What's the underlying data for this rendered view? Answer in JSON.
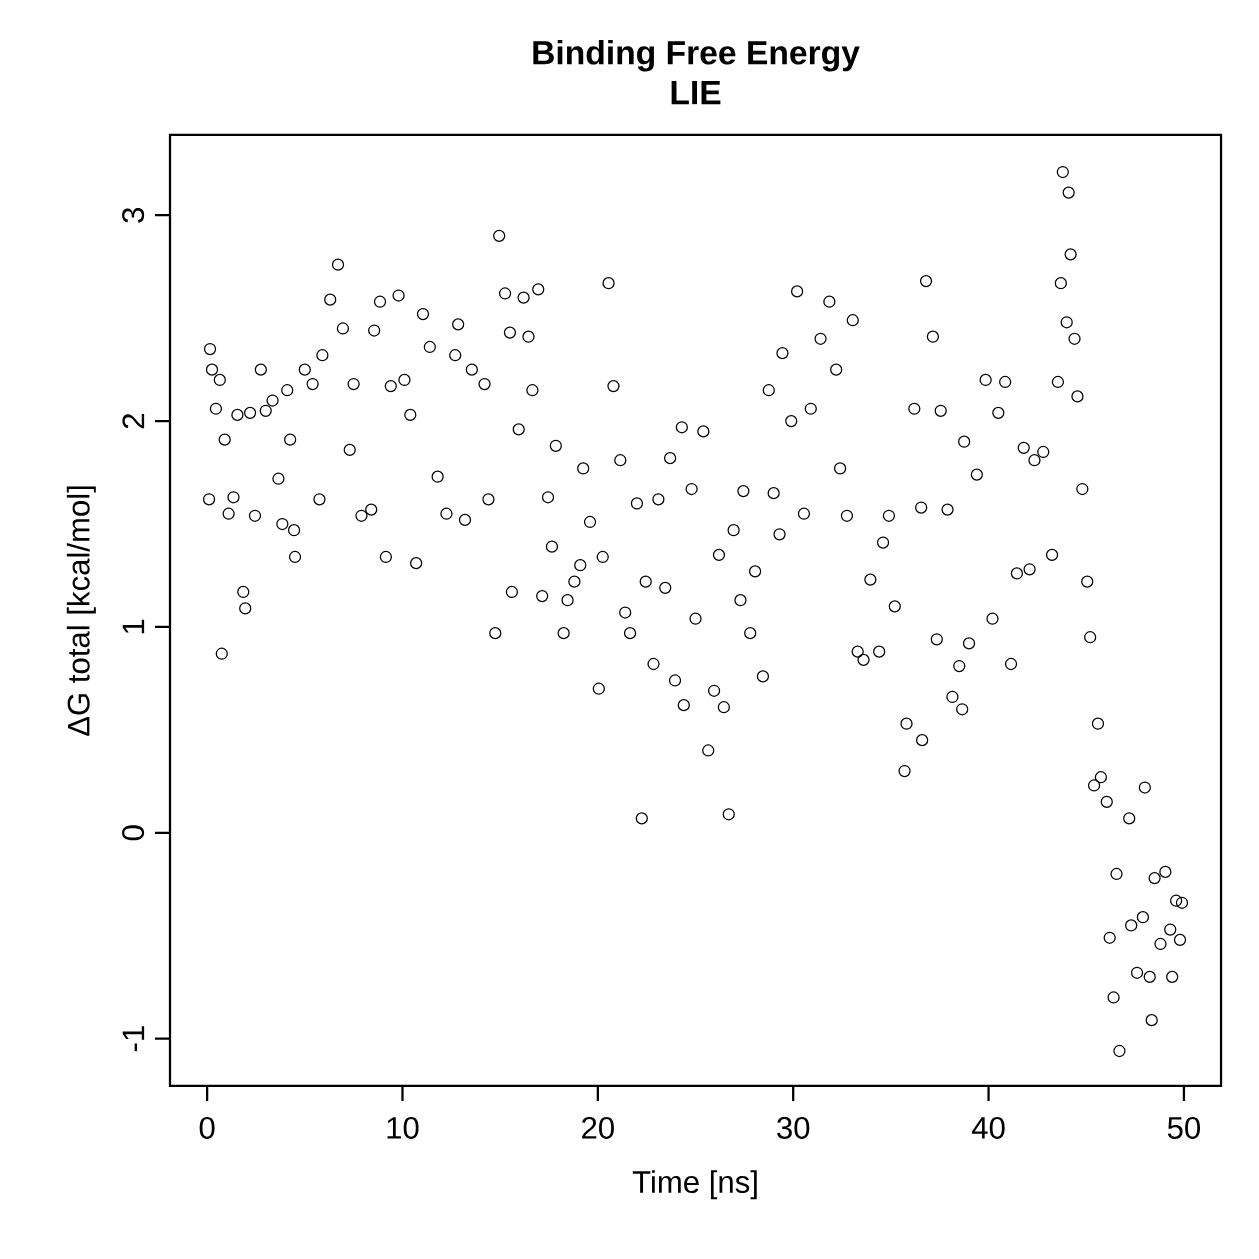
{
  "chart_data": {
    "type": "scatter",
    "title": "Binding Free Energy",
    "subtitle": "LIE",
    "xlabel": "Time [ns]",
    "ylabel": "ΔG total [kcal/mol]",
    "color": "#000000",
    "marker": "circle",
    "xlim": [
      -1.9,
      51.9
    ],
    "ylim": [
      -1.23,
      3.39
    ],
    "xticks": [
      0,
      10,
      20,
      30,
      40,
      50
    ],
    "yticks": [
      -1,
      0,
      1,
      2,
      3
    ],
    "x": [
      0.1,
      0.15,
      0.25,
      0.45,
      0.65,
      0.75,
      0.9,
      1.1,
      1.35,
      1.55,
      1.85,
      1.95,
      2.2,
      2.45,
      2.75,
      3.0,
      3.35,
      3.65,
      3.85,
      4.1,
      4.25,
      4.45,
      4.5,
      5.0,
      5.4,
      5.75,
      5.9,
      6.3,
      6.7,
      6.95,
      7.3,
      7.5,
      7.9,
      8.4,
      8.55,
      8.85,
      9.15,
      9.4,
      9.8,
      10.1,
      10.4,
      10.7,
      11.05,
      11.4,
      11.8,
      12.25,
      12.7,
      12.85,
      13.2,
      13.55,
      14.2,
      14.4,
      14.75,
      14.95,
      15.25,
      15.5,
      15.6,
      15.95,
      16.2,
      16.45,
      16.65,
      16.95,
      17.15,
      17.45,
      17.65,
      17.85,
      18.25,
      18.45,
      18.8,
      19.1,
      19.25,
      19.6,
      20.05,
      20.25,
      20.55,
      20.8,
      21.15,
      21.4,
      21.65,
      22.0,
      22.25,
      22.45,
      22.85,
      23.1,
      23.45,
      23.7,
      23.95,
      24.3,
      24.4,
      24.8,
      25.0,
      25.4,
      25.65,
      25.95,
      26.2,
      26.45,
      26.7,
      26.95,
      27.3,
      27.45,
      27.8,
      28.05,
      28.45,
      28.75,
      29.0,
      29.3,
      29.45,
      29.9,
      30.2,
      30.55,
      30.9,
      31.4,
      31.85,
      32.2,
      32.4,
      32.75,
      33.05,
      33.3,
      33.6,
      33.95,
      34.4,
      34.6,
      34.9,
      35.2,
      35.7,
      35.8,
      36.2,
      36.55,
      36.6,
      36.8,
      37.15,
      37.35,
      37.55,
      37.9,
      38.15,
      38.5,
      38.65,
      38.75,
      39.0,
      39.4,
      39.85,
      40.2,
      40.5,
      40.85,
      41.15,
      41.45,
      41.8,
      42.1,
      42.35,
      42.8,
      43.25,
      43.55,
      43.7,
      43.8,
      44.0,
      44.1,
      44.2,
      44.4,
      44.55,
      44.8,
      45.05,
      45.2,
      45.4,
      45.6,
      45.75,
      46.05,
      46.2,
      46.4,
      46.55,
      46.7,
      47.2,
      47.3,
      47.6,
      47.9,
      48.0,
      48.25,
      48.35,
      48.5,
      48.8,
      49.05,
      49.3,
      49.4,
      49.6,
      49.8,
      49.9
    ],
    "values": [
      1.62,
      2.35,
      2.25,
      2.06,
      2.2,
      0.87,
      1.91,
      1.55,
      1.63,
      2.03,
      1.17,
      1.09,
      2.04,
      1.54,
      2.25,
      2.05,
      2.1,
      1.72,
      1.5,
      2.15,
      1.91,
      1.47,
      1.34,
      2.25,
      2.18,
      1.62,
      2.32,
      2.59,
      2.76,
      2.45,
      1.86,
      2.18,
      1.54,
      1.57,
      2.44,
      2.58,
      1.34,
      2.17,
      2.61,
      2.2,
      2.03,
      1.31,
      2.52,
      2.36,
      1.73,
      1.55,
      2.32,
      2.47,
      1.52,
      2.25,
      2.18,
      1.62,
      0.97,
      2.9,
      2.62,
      2.43,
      1.17,
      1.96,
      2.6,
      2.41,
      2.15,
      2.64,
      1.15,
      1.63,
      1.39,
      1.88,
      0.97,
      1.13,
      1.22,
      1.3,
      1.77,
      1.51,
      0.7,
      1.34,
      2.67,
      2.17,
      1.81,
      1.07,
      0.97,
      1.6,
      0.07,
      1.22,
      0.82,
      1.62,
      1.19,
      1.82,
      0.74,
      1.97,
      0.62,
      1.67,
      1.04,
      1.95,
      0.4,
      0.69,
      1.35,
      0.61,
      0.09,
      1.47,
      1.13,
      1.66,
      0.97,
      1.27,
      0.76,
      2.15,
      1.65,
      1.45,
      2.33,
      2.0,
      2.63,
      1.55,
      2.06,
      2.4,
      2.58,
      2.25,
      1.77,
      1.54,
      2.49,
      0.88,
      0.84,
      1.23,
      0.88,
      1.41,
      1.54,
      1.1,
      0.3,
      0.53,
      2.06,
      1.58,
      0.45,
      2.68,
      2.41,
      0.94,
      2.05,
      1.57,
      0.66,
      0.81,
      0.6,
      1.9,
      0.92,
      1.74,
      2.2,
      1.04,
      2.04,
      2.19,
      0.82,
      1.26,
      1.87,
      1.28,
      1.81,
      1.85,
      1.35,
      2.19,
      2.67,
      3.21,
      2.48,
      3.11,
      2.81,
      2.4,
      2.12,
      1.67,
      1.22,
      0.95,
      0.23,
      0.53,
      0.27,
      0.15,
      -0.51,
      -0.8,
      -0.2,
      -1.06,
      0.07,
      -0.45,
      -0.68,
      -0.41,
      0.22,
      -0.7,
      -0.91,
      -0.22,
      -0.54,
      -0.19,
      -0.47,
      -0.7,
      -0.33,
      -0.52,
      -0.34
    ]
  }
}
